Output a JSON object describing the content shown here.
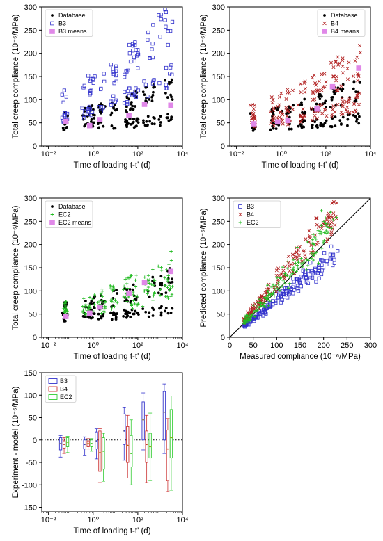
{
  "chart_data": [
    {
      "id": "p1",
      "type": "scatter",
      "xlabel": "Time of loading t-t' (d)",
      "ylabel": "Total creep compliance (10⁻⁶/MPa)",
      "xscale": "log",
      "xlim": [
        0.005,
        10000
      ],
      "ylim": [
        0,
        300
      ],
      "xticks": [
        0.01,
        1,
        100,
        10000
      ],
      "xtick_labels": [
        "10⁻²",
        "10⁰",
        "10²",
        "10⁴"
      ],
      "yticks": [
        0,
        50,
        100,
        150,
        200,
        250,
        300
      ],
      "legend_position": "top-left",
      "series": [
        {
          "name": "Database",
          "marker": "dot",
          "color": "#000000",
          "n": 160,
          "lines": [
            [
              35,
              1.2
            ],
            [
              50,
              4.5
            ]
          ],
          "spread": 0.3
        },
        {
          "name": "B3",
          "marker": "square-open",
          "color": "#3333cc",
          "n": 140,
          "lines": [
            [
              48,
              7
            ],
            [
              85,
              12
            ]
          ],
          "spread": 0.25
        },
        {
          "name": "B3 means",
          "marker": "square-filled",
          "color": "#e088e8",
          "points": [
            [
              0.06,
              53
            ],
            [
              0.7,
              44
            ],
            [
              2,
              57
            ],
            [
              40,
              66
            ],
            [
              200,
              90
            ],
            [
              3000,
              88
            ]
          ]
        }
      ]
    },
    {
      "id": "p2",
      "type": "scatter",
      "xlabel": "Time of loading t-t' (d)",
      "ylabel": "Total creep compliance (10⁻⁶/MPa)",
      "xscale": "log",
      "xlim": [
        0.005,
        10000
      ],
      "ylim": [
        0,
        300
      ],
      "xticks": [
        0.01,
        1,
        100,
        10000
      ],
      "xtick_labels": [
        "10⁻²",
        "10⁰",
        "10²",
        "10⁴"
      ],
      "yticks": [
        0,
        50,
        100,
        150,
        200,
        250,
        300
      ],
      "legend_position": "top-right",
      "series": [
        {
          "name": "Database",
          "marker": "dot",
          "color": "#000000",
          "n": 160,
          "lines": [
            [
              35,
              1.2
            ],
            [
              50,
              4.5
            ]
          ],
          "spread": 0.3
        },
        {
          "name": "B4",
          "marker": "x",
          "color": "#b22222",
          "n": 180,
          "lines": [
            [
              40,
              3
            ],
            [
              55,
              8
            ]
          ],
          "spread": 0.35
        },
        {
          "name": "B4 means",
          "marker": "square-filled",
          "color": "#e088e8",
          "points": [
            [
              0.06,
              48
            ],
            [
              0.7,
              52
            ],
            [
              2,
              55
            ],
            [
              40,
              80
            ],
            [
              200,
              128
            ],
            [
              3000,
              168
            ]
          ]
        }
      ]
    },
    {
      "id": "p3",
      "type": "scatter",
      "xlabel": "Time of loading t-t' (d)",
      "ylabel": "Total creep compliance (10⁻⁶/MPa)",
      "xscale": "log",
      "xlim": [
        0.005,
        10000
      ],
      "ylim": [
        0,
        300
      ],
      "xticks": [
        0.01,
        1,
        100,
        10000
      ],
      "xtick_labels": [
        "10⁻²",
        "10⁰",
        "10²",
        "10⁴"
      ],
      "yticks": [
        0,
        50,
        100,
        150,
        200,
        250,
        300
      ],
      "legend_position": "top-left",
      "series": [
        {
          "name": "Database",
          "marker": "dot",
          "color": "#000000",
          "n": 160,
          "lines": [
            [
              35,
              1.2
            ],
            [
              50,
              4.5
            ]
          ],
          "spread": 0.3
        },
        {
          "name": "EC2",
          "marker": "plus",
          "color": "#22bb22",
          "n": 170,
          "lines": [
            [
              42,
              3.5
            ],
            [
              50,
              6.5
            ]
          ],
          "spread": 0.3
        },
        {
          "name": "EC2 means",
          "marker": "square-filled",
          "color": "#e088e8",
          "points": [
            [
              0.06,
              45
            ],
            [
              0.7,
              52
            ],
            [
              2,
              65
            ],
            [
              40,
              95
            ],
            [
              200,
              118
            ],
            [
              3000,
              142
            ]
          ]
        }
      ]
    },
    {
      "id": "p4",
      "type": "scatter",
      "xlabel": "Measured compliance (10⁻⁶/MPa)",
      "ylabel": "Predicted compliance (10⁻⁶/MPa)",
      "xscale": "linear",
      "xlim": [
        0,
        300
      ],
      "ylim": [
        0,
        300
      ],
      "xticks": [
        0,
        50,
        100,
        150,
        200,
        250,
        300
      ],
      "yticks": [
        0,
        50,
        100,
        150,
        200,
        250,
        300
      ],
      "legend_position": "top-left",
      "reference_line": "y = x",
      "series": [
        {
          "name": "B3",
          "marker": "square-open",
          "color": "#3333cc",
          "n": 170,
          "slope": 0.8,
          "spread": 0.25
        },
        {
          "name": "B4",
          "marker": "x",
          "color": "#b22222",
          "n": 170,
          "slope": 1.2,
          "spread": 0.3
        },
        {
          "name": "EC2",
          "marker": "plus",
          "color": "#22bb22",
          "n": 170,
          "slope": 1.1,
          "spread": 0.35
        }
      ]
    },
    {
      "id": "p5",
      "type": "box",
      "xlabel": "Time of loading t-t' (d)",
      "ylabel": "Experiment - model (10⁻⁶/MPa)",
      "xscale": "log",
      "xlim": [
        0.005,
        10000
      ],
      "ylim": [
        -160,
        150
      ],
      "xticks": [
        0.01,
        1,
        100,
        10000
      ],
      "xtick_labels": [
        "10⁻²",
        "10⁰",
        "10²",
        "10⁴"
      ],
      "yticks": [
        -150,
        -100,
        -50,
        0,
        50,
        100,
        150
      ],
      "legend_position": "top-left",
      "zero_line": true,
      "series": [
        {
          "name": "B3",
          "color": "#3333cc",
          "boxes": [
            {
              "x": 0.05,
              "whisker": [
                -38,
                10
              ],
              "box": [
                -22,
                5
              ],
              "median": -8,
              "mean": -8
            },
            {
              "x": 0.6,
              "whisker": [
                -35,
                7
              ],
              "box": [
                -20,
                0
              ],
              "median": -10,
              "mean": -10
            },
            {
              "x": 2,
              "whisker": [
                -42,
                25
              ],
              "box": [
                -20,
                18
              ],
              "median": -2,
              "mean": -2
            },
            {
              "x": 35,
              "whisker": [
                -45,
                72
              ],
              "box": [
                -10,
                58
              ],
              "median": 20,
              "mean": 20
            },
            {
              "x": 250,
              "whisker": [
                -22,
                105
              ],
              "box": [
                0,
                85
              ],
              "median": 45,
              "mean": 45
            },
            {
              "x": 2200,
              "whisker": [
                -30,
                125
              ],
              "box": [
                0,
                108
              ],
              "median": 62,
              "mean": 62
            }
          ]
        },
        {
          "name": "B4",
          "color": "#cc3333",
          "boxes": [
            {
              "x": 0.05,
              "whisker": [
                -30,
                5
              ],
              "box": [
                -18,
                -2
              ],
              "median": -10,
              "mean": -10
            },
            {
              "x": 0.6,
              "whisker": [
                -20,
                3
              ],
              "box": [
                -15,
                -2
              ],
              "median": -8,
              "mean": -8
            },
            {
              "x": 2,
              "whisker": [
                -95,
                25
              ],
              "box": [
                -70,
                20
              ],
              "median": -28,
              "mean": -28
            },
            {
              "x": 35,
              "whisker": [
                -85,
                55
              ],
              "box": [
                -50,
                30
              ],
              "median": -12,
              "mean": -12
            },
            {
              "x": 250,
              "whisker": [
                -95,
                55
              ],
              "box": [
                -50,
                20
              ],
              "median": -10,
              "mean": -10
            },
            {
              "x": 2200,
              "whisker": [
                -115,
                48
              ],
              "box": [
                -90,
                22
              ],
              "median": -20,
              "mean": -20
            }
          ]
        },
        {
          "name": "EC2",
          "color": "#33cc33",
          "boxes": [
            {
              "x": 0.05,
              "whisker": [
                -28,
                8
              ],
              "box": [
                -15,
                5
              ],
              "median": -5,
              "mean": -5
            },
            {
              "x": 0.6,
              "whisker": [
                -25,
                3
              ],
              "box": [
                -15,
                0
              ],
              "median": -8,
              "mean": -8
            },
            {
              "x": 2,
              "whisker": [
                -92,
                15
              ],
              "box": [
                -65,
                5
              ],
              "median": -25,
              "mean": -25
            },
            {
              "x": 35,
              "whisker": [
                -100,
                45
              ],
              "box": [
                -60,
                10
              ],
              "median": -30,
              "mean": -30
            },
            {
              "x": 250,
              "whisker": [
                -90,
                60
              ],
              "box": [
                -40,
                15
              ],
              "median": -15,
              "mean": -15
            },
            {
              "x": 2200,
              "whisker": [
                -112,
                98
              ],
              "box": [
                -40,
                68
              ],
              "median": 5,
              "mean": 5
            }
          ]
        }
      ]
    }
  ]
}
